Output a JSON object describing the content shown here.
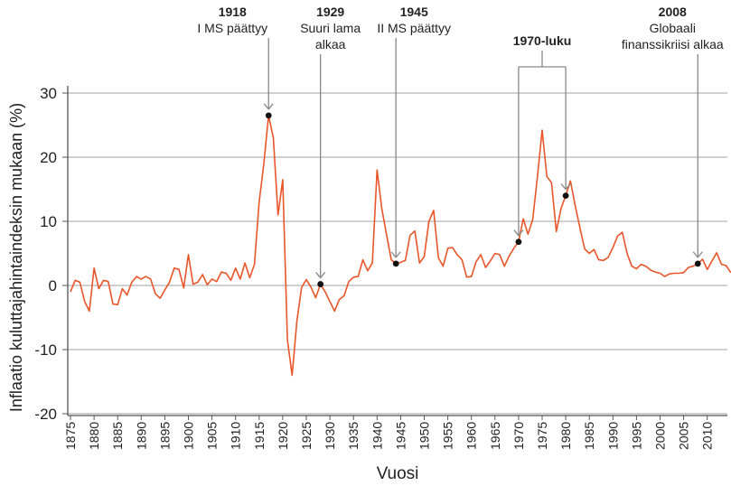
{
  "chart_data": {
    "type": "line",
    "title": "",
    "xlabel": "Vuosi",
    "ylabel": "Inflaatio kuluttajahintaindeksin mukaan (%)",
    "xlim": [
      1875,
      2014
    ],
    "ylim": [
      -20,
      30
    ],
    "yticks": [
      30,
      20,
      10,
      0,
      -10,
      -20
    ],
    "xticks": [
      1875,
      1880,
      1885,
      1890,
      1895,
      1900,
      1905,
      1910,
      1915,
      1920,
      1925,
      1930,
      1935,
      1940,
      1945,
      1950,
      1955,
      1960,
      1965,
      1970,
      1975,
      1980,
      1985,
      1990,
      1995,
      2000,
      2005,
      2010
    ],
    "grid": "horizontal",
    "line_color": "#e8562a",
    "x_start": 1875,
    "values": [
      -1,
      0.8,
      0.5,
      -2.5,
      -4,
      2.7,
      -0.5,
      0.8,
      0.6,
      -2.9,
      -3,
      -0.5,
      -1.5,
      0.5,
      1.4,
      1,
      1.4,
      1,
      -1.3,
      -2,
      -0.7,
      0.5,
      2.7,
      2.5,
      -0.4,
      4.8,
      0.2,
      0.5,
      1.7,
      0.1,
      1,
      0.6,
      2.1,
      1.9,
      0.8,
      2.7,
      1,
      3.5,
      1.2,
      3.3,
      13,
      19,
      26.5,
      23,
      11,
      16.5,
      -8.5,
      -14,
      -5.5,
      -0.3,
      0.9,
      -0.3,
      -1.9,
      0.2,
      -1,
      -2.5,
      -4,
      -2.2,
      -1.6,
      0.6,
      1.3,
      1.4,
      4,
      2.3,
      3.5,
      18,
      12,
      8,
      4,
      3.4,
      3.6,
      3.9,
      7.8,
      8.5,
      3.5,
      4.5,
      10,
      11.7,
      4.3,
      3,
      5.8,
      5.9,
      4.8,
      4,
      1.3,
      1.4,
      3.7,
      4.8,
      2.8,
      3.8,
      5,
      4.8,
      3,
      4.6,
      5.8,
      6.8,
      10.4,
      8,
      10.3,
      17,
      24.2,
      17,
      16,
      8.4,
      12,
      14,
      16.3,
      12.5,
      9,
      5.7,
      5,
      5.6,
      4,
      3.9,
      4.4,
      5.9,
      7.7,
      8.3,
      5,
      3,
      2.6,
      3.3,
      3,
      2.4,
      2.1,
      1.9,
      1.4,
      1.8,
      1.9,
      1.9,
      2,
      2.8,
      3,
      3.4,
      4.1,
      2.5,
      3.8,
      5.1,
      3.3,
      3.1,
      2
    ],
    "annotations": [
      {
        "year": 1917,
        "value": 26.5,
        "label_year": "1918",
        "lines": [
          "I MS päättyy"
        ]
      },
      {
        "year": 1928,
        "value": 0.2,
        "label_year": "1929",
        "lines": [
          "Suuri lama",
          "alkaa"
        ]
      },
      {
        "year": 1944,
        "value": 3.4,
        "label_year": "1945",
        "lines": [
          "II MS päättyy"
        ]
      },
      {
        "year": 2008,
        "value": 3.4,
        "label_year": "2008",
        "lines": [
          "Globaali",
          "finanssikriisi alkaa"
        ]
      }
    ],
    "bracket": {
      "label": "1970-luku",
      "points": [
        {
          "year": 1970,
          "value": 6.8
        },
        {
          "year": 1980,
          "value": 14
        }
      ]
    }
  }
}
